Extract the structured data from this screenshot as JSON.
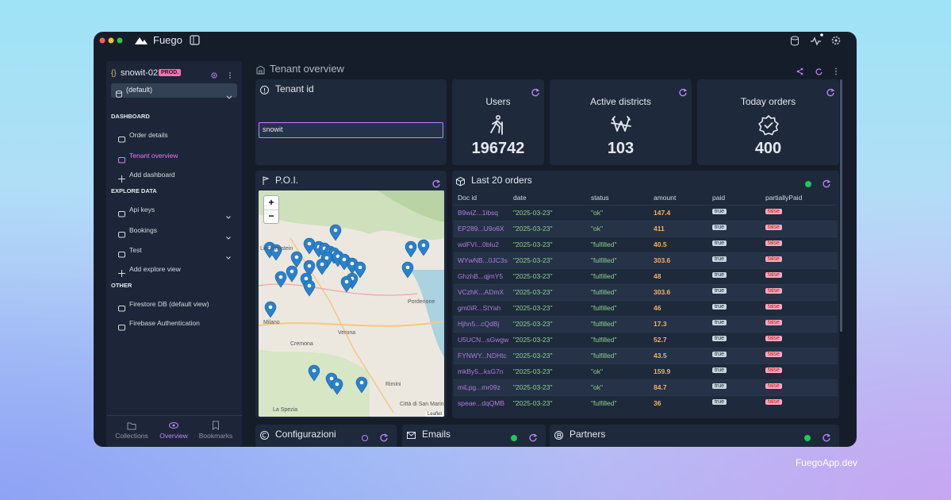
{
  "app": {
    "name": "Fuego"
  },
  "sidebar": {
    "project": "snowit-02",
    "env_badge": "PROD.",
    "database": "(default)",
    "sections": [
      {
        "title": "DASHBOARD",
        "items": [
          "Order details",
          "Tenant overview",
          "Add dashboard"
        ]
      },
      {
        "title": "EXPLORE DATA",
        "items": [
          "Api keys",
          "Bookings",
          "Test",
          "Add explore view"
        ]
      },
      {
        "title": "OTHER",
        "items": [
          "Firestore DB (default view)",
          "Firebase Authentication"
        ]
      }
    ],
    "tabs": [
      "Collections",
      "Overview",
      "Bookmarks"
    ]
  },
  "page": {
    "title": "Tenant overview"
  },
  "tenant": {
    "title": "Tenant id",
    "input": "snowit"
  },
  "stats": [
    {
      "label": "Users",
      "value": 196742
    },
    {
      "label": "Active districts",
      "value": 103
    },
    {
      "label": "Today orders",
      "value": 400
    }
  ],
  "poi": {
    "title": "P.O.I.",
    "zoom_in": "+",
    "zoom_out": "−",
    "attribution": "Leaflet",
    "map_labels": [
      "Liechtenstein",
      "Milano",
      "Cremona",
      "Verona",
      "Pordenone",
      "Rimini",
      "La Spezia",
      "Città di San Marino"
    ]
  },
  "orders": {
    "title": "Last 20 orders",
    "columns": [
      "Doc id",
      "date",
      "status",
      "amount",
      "paid",
      "partiallyPaid"
    ],
    "rows": [
      [
        "B9wiZ...1ibsq",
        "\"2025-03-23\"",
        "\"ok\"",
        147.4,
        "true",
        "false"
      ],
      [
        "EP289...U9o6X",
        "\"2025-03-23\"",
        "\"ok\"",
        411,
        "true",
        "false"
      ],
      [
        "wdFVI...0blu2",
        "\"2025-03-23\"",
        "\"fulfilled\"",
        40.5,
        "true",
        "false"
      ],
      [
        "WYwNB...0JC3s",
        "\"2025-03-23\"",
        "\"fulfilled\"",
        303.6,
        "true",
        "false"
      ],
      [
        "GhzhB...qjmY5",
        "\"2025-03-23\"",
        "\"fulfilled\"",
        48,
        "true",
        "false"
      ],
      [
        "VCzhK...ADmX",
        "\"2025-03-23\"",
        "\"fulfilled\"",
        303.6,
        "true",
        "false"
      ],
      [
        "gm0iR...StYah",
        "\"2025-03-23\"",
        "\"fulfilled\"",
        46,
        "true",
        "false"
      ],
      [
        "Hjhn5...cQdBj",
        "\"2025-03-23\"",
        "\"fulfilled\"",
        17.3,
        "true",
        "false"
      ],
      [
        "U5UCN...sGwgw",
        "\"2025-03-23\"",
        "\"fulfilled\"",
        52.7,
        "true",
        "false"
      ],
      [
        "FYNWY...NDHtc",
        "\"2025-03-23\"",
        "\"fulfilled\"",
        43.5,
        "true",
        "false"
      ],
      [
        "mkBy5...ksG7n",
        "\"2025-03-23\"",
        "\"ok\"",
        159.9,
        "true",
        "false"
      ],
      [
        "miLpg...mr09z",
        "\"2025-03-23\"",
        "\"ok\"",
        84.7,
        "true",
        "false"
      ],
      [
        "speae...dqQMB",
        "\"2025-03-23\"",
        "\"fulfilled\"",
        36,
        "true",
        "false"
      ]
    ]
  },
  "bottom_cards": [
    "Configurazioni",
    "Emails",
    "Partners"
  ],
  "footer": "FuegoApp.dev"
}
